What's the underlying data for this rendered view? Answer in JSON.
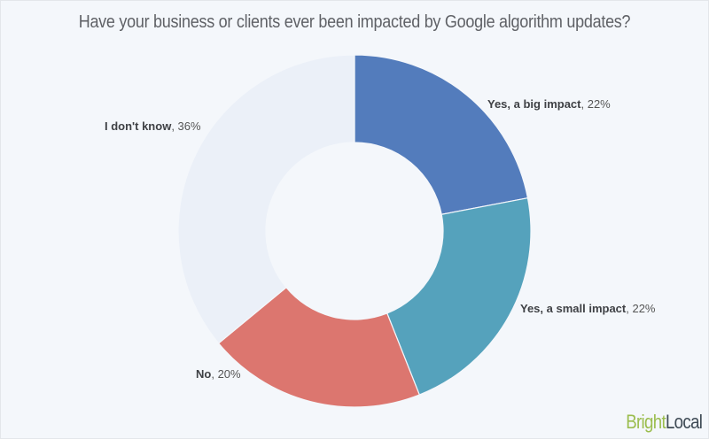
{
  "title": "Have your business or clients ever been impacted by Google algorithm updates?",
  "brand": {
    "part1": "Bright",
    "part2": "Local",
    "color1": "#9bbd4e",
    "color2": "#3e4a55"
  },
  "labels": {
    "big": {
      "name": "Yes, a big impact",
      "value": ", 22%"
    },
    "small": {
      "name": "Yes, a small impact",
      "value": ", 22%"
    },
    "no": {
      "name": "No",
      "value": ", 20%"
    },
    "dontknow": {
      "name": "I don't know",
      "value": ", 36%"
    }
  },
  "chart_data": {
    "type": "pie",
    "variant": "donut",
    "title": "Have your business or clients ever been impacted by Google algorithm updates?",
    "categories": [
      "Yes, a big impact",
      "Yes, a small impact",
      "No",
      "I don't know"
    ],
    "values": [
      22,
      22,
      20,
      36
    ],
    "unit": "%",
    "colors": [
      "#537cbc",
      "#55a2bc",
      "#dc766f",
      "#ebf0f8"
    ],
    "start_angle": "12 o'clock",
    "direction": "clockwise",
    "legend": "none (direct labels)",
    "center": [
      400,
      261
    ],
    "outer_radius": 199,
    "inner_radius": 100
  }
}
